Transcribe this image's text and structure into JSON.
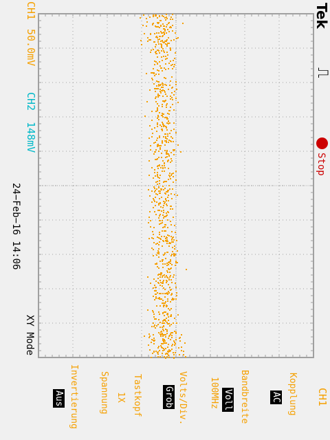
{
  "header": {
    "brand": "Tek",
    "trigger_symbol": "⎍",
    "status": "Stop"
  },
  "channels": {
    "ch1_label": "CH1",
    "ch1_scale": "50.0mV",
    "ch2_label": "CH2",
    "ch2_scale": "148mV"
  },
  "timestamp": "24−Feb−16 14:06",
  "mode": "XY Mode",
  "menu": {
    "title": "CH1",
    "items": [
      {
        "label": "Kopplung",
        "value": "AC"
      },
      {
        "label": "Bandbreite",
        "value": "Voll",
        "extra": "100MHz"
      },
      {
        "label": "Volts/Div.",
        "value": "Grob"
      },
      {
        "label": "Tastkopf",
        "value": "1X",
        "extra": "Spannung"
      },
      {
        "label": "Invertierung",
        "value": "Aus"
      }
    ]
  },
  "colors": {
    "ch1": "#f5a000",
    "ch2": "#00b8c8",
    "grid": "#a0a0a0",
    "status_dot": "#cc0000"
  }
}
